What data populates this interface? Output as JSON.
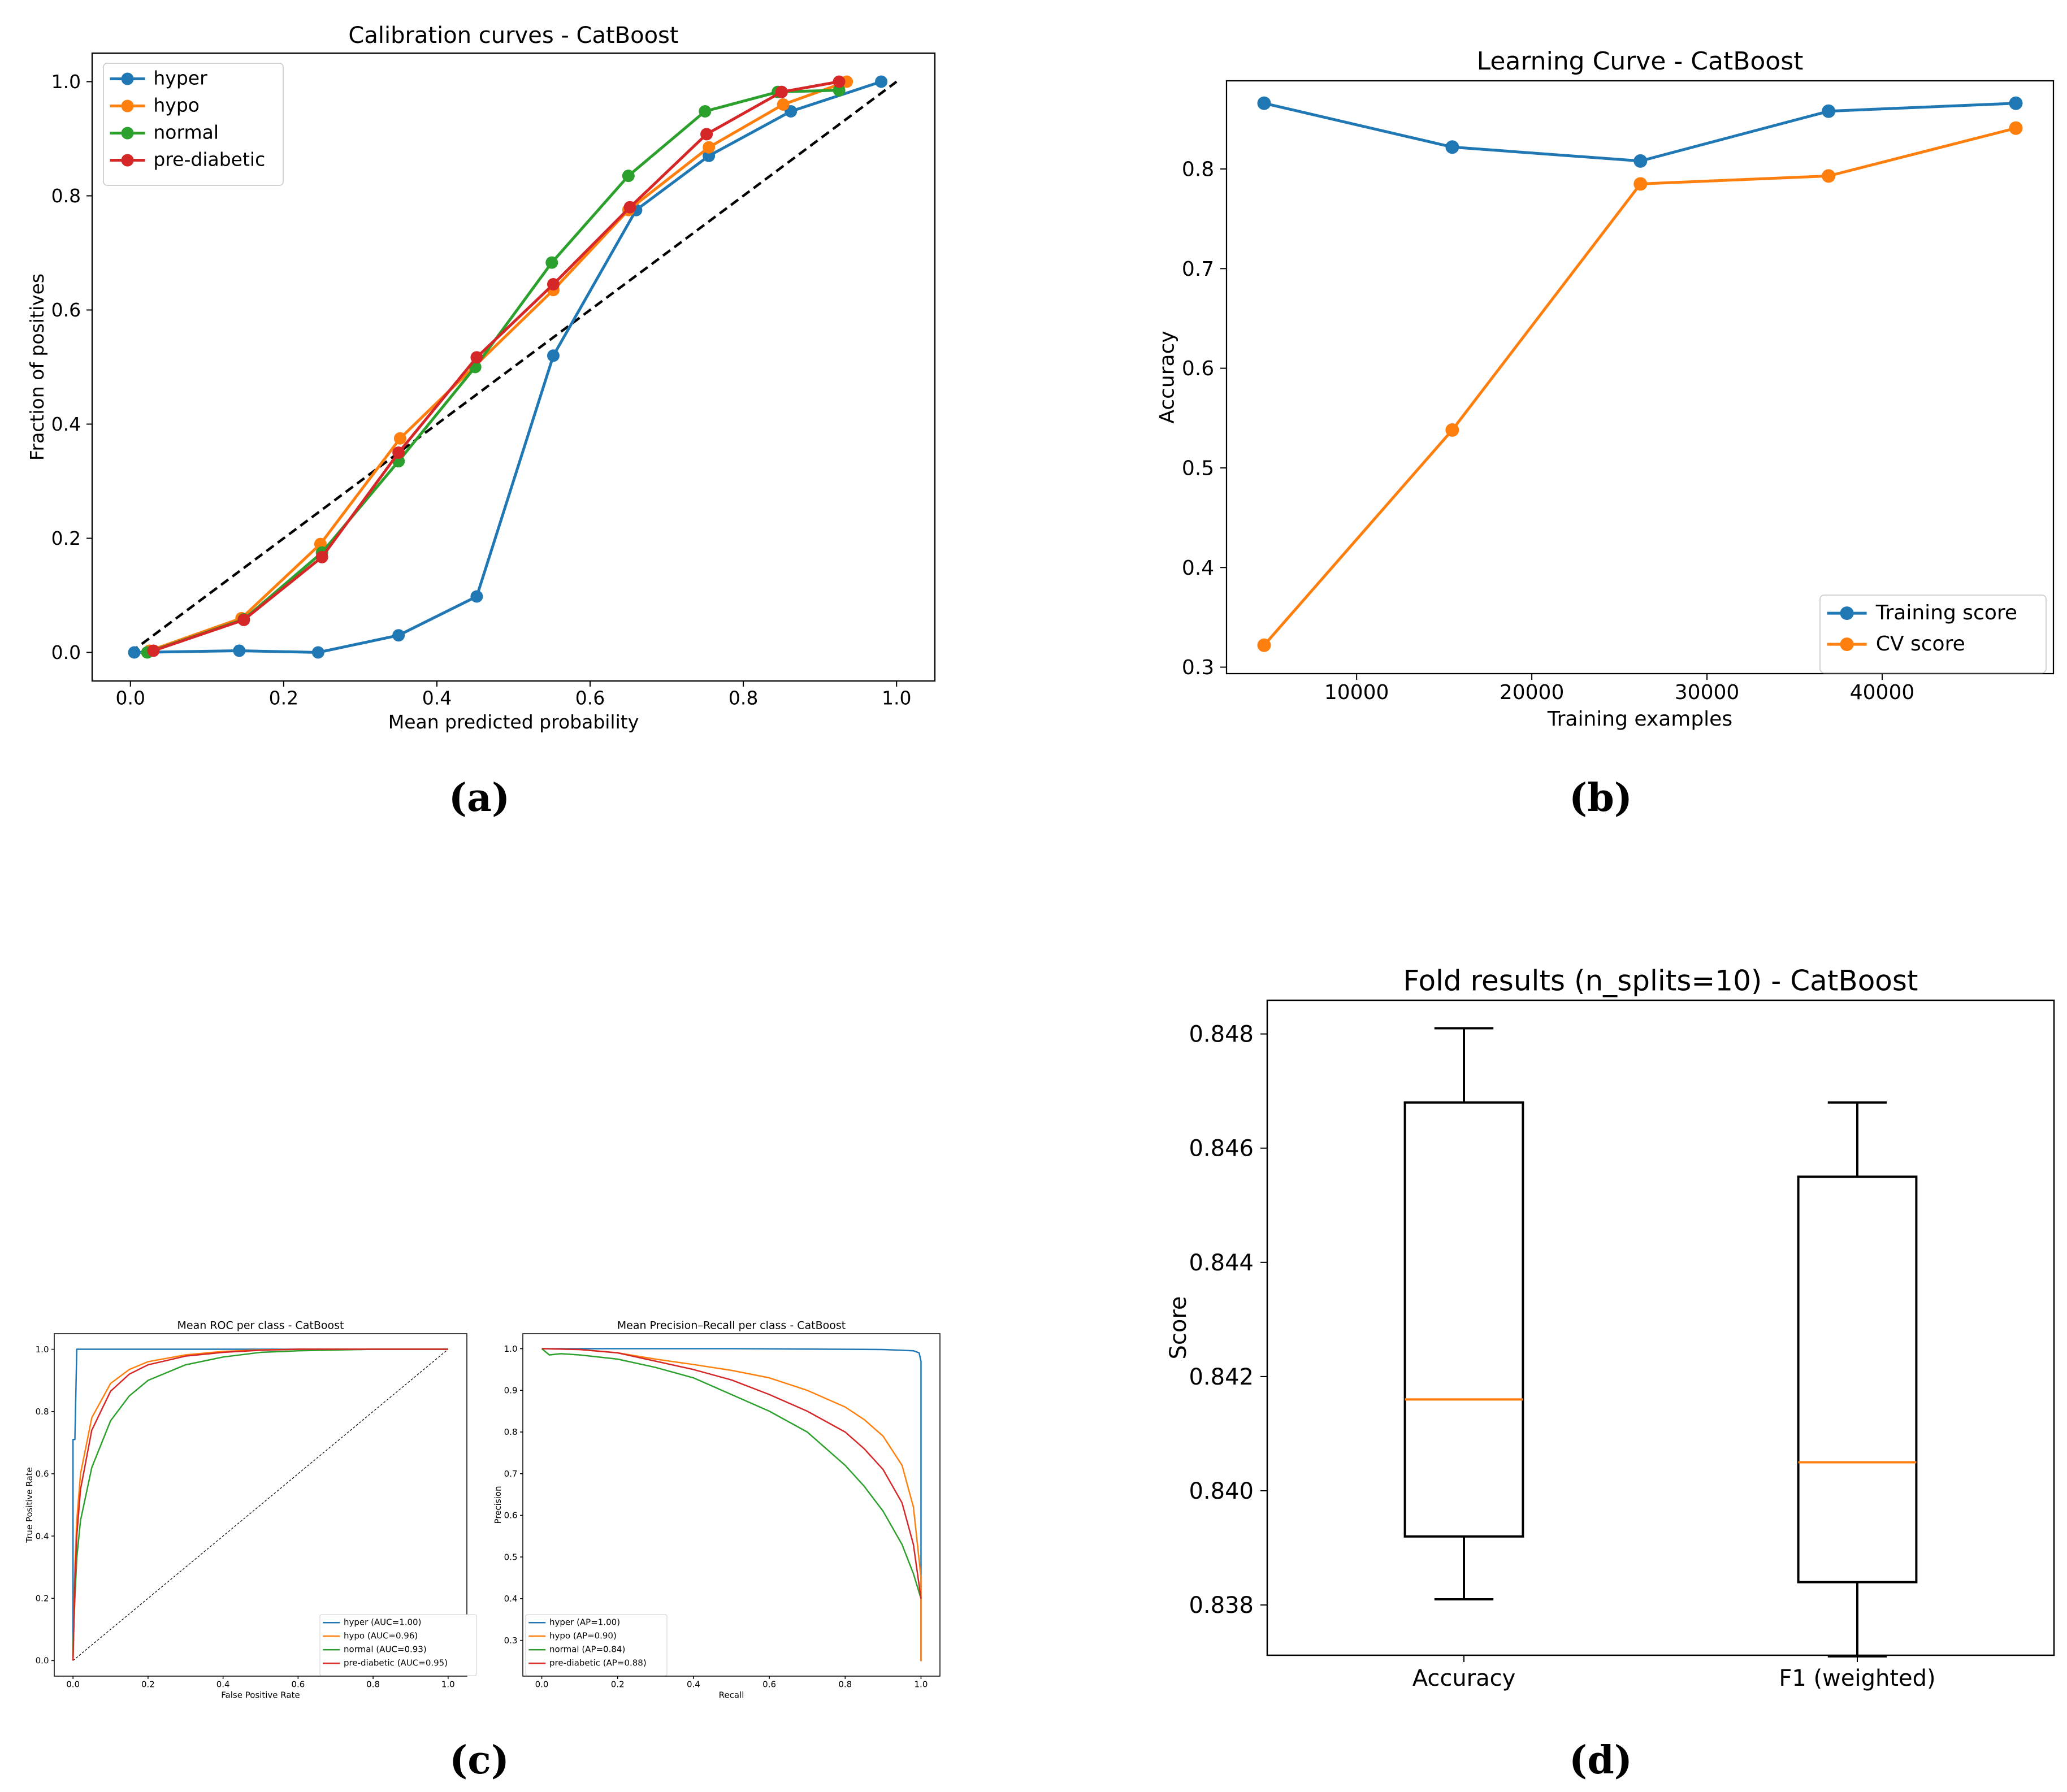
{
  "colors": {
    "blue": "#1f77b4",
    "orange": "#ff7f0e",
    "green": "#2ca02c",
    "red": "#d62728",
    "black": "#000000"
  },
  "panels": {
    "a": "(a)",
    "b": "(b)",
    "c": "(c)",
    "d": "(d)"
  },
  "chart_data": [
    {
      "id": "a",
      "type": "line",
      "title": "Calibration curves - CatBoost",
      "xlabel": "Mean predicted probability",
      "ylabel": "Fraction of positives",
      "xlim": [
        -0.05,
        1.05
      ],
      "ylim": [
        -0.05,
        1.05
      ],
      "xticks": [
        0.0,
        0.2,
        0.4,
        0.6,
        0.8,
        1.0
      ],
      "xtick_labels": [
        "0.0",
        "0.2",
        "0.4",
        "0.6",
        "0.8",
        "1.0"
      ],
      "yticks": [
        0.0,
        0.2,
        0.4,
        0.6,
        0.8,
        1.0
      ],
      "ytick_labels": [
        "0.0",
        "0.2",
        "0.4",
        "0.6",
        "0.8",
        "1.0"
      ],
      "legend": "top-left",
      "reference_line": {
        "x": [
          0,
          1
        ],
        "y": [
          0,
          1
        ],
        "style": "dashed",
        "color": "#000000"
      },
      "series": [
        {
          "name": "hyper",
          "color": "#1f77b4",
          "x": [
            0.005,
            0.142,
            0.245,
            0.35,
            0.452,
            0.552,
            0.66,
            0.755,
            0.862,
            0.98
          ],
          "y": [
            0.0,
            0.003,
            0.0,
            0.03,
            0.098,
            0.52,
            0.775,
            0.87,
            0.948,
            1.0
          ]
        },
        {
          "name": "hypo",
          "color": "#ff7f0e",
          "x": [
            0.025,
            0.145,
            0.248,
            0.352,
            0.552,
            0.65,
            0.755,
            0.852,
            0.935
          ],
          "y": [
            0.003,
            0.06,
            0.19,
            0.375,
            0.635,
            0.775,
            0.885,
            0.96,
            1.0
          ]
        },
        {
          "name": "normal",
          "color": "#2ca02c",
          "x": [
            0.022,
            0.148,
            0.25,
            0.35,
            0.45,
            0.55,
            0.65,
            0.75,
            0.845,
            0.925
          ],
          "y": [
            0.0,
            0.058,
            0.175,
            0.335,
            0.5,
            0.683,
            0.835,
            0.948,
            0.982,
            0.985
          ]
        },
        {
          "name": "pre-diabetic",
          "color": "#d62728",
          "x": [
            0.03,
            0.148,
            0.25,
            0.35,
            0.452,
            0.552,
            0.652,
            0.752,
            0.85,
            0.925
          ],
          "y": [
            0.003,
            0.057,
            0.167,
            0.35,
            0.517,
            0.645,
            0.78,
            0.908,
            0.982,
            1.0
          ]
        }
      ]
    },
    {
      "id": "b",
      "type": "line",
      "title": "Learning Curve - CatBoost",
      "xlabel": "Training examples",
      "ylabel": "Accuracy",
      "xlim": [
        2575,
        49775
      ],
      "ylim": [
        0.2935,
        0.8885
      ],
      "xticks": [
        10000,
        20000,
        30000,
        40000
      ],
      "xtick_labels": [
        "10000",
        "20000",
        "30000",
        "40000"
      ],
      "yticks": [
        0.3,
        0.4,
        0.5,
        0.6,
        0.7,
        0.8
      ],
      "ytick_labels": [
        "0.3",
        "0.4",
        "0.5",
        "0.6",
        "0.7",
        "0.8"
      ],
      "legend": "lower-right",
      "series": [
        {
          "name": "Training score",
          "color": "#1f77b4",
          "x": [
            4720,
            15460,
            26200,
            36940,
            47630
          ],
          "y": [
            0.866,
            0.822,
            0.808,
            0.858,
            0.866
          ]
        },
        {
          "name": "CV score",
          "color": "#ff7f0e",
          "x": [
            4720,
            15460,
            26200,
            36940,
            47630
          ],
          "y": [
            0.322,
            0.538,
            0.785,
            0.793,
            0.841
          ]
        }
      ]
    },
    {
      "id": "c1",
      "type": "line",
      "title": "Mean ROC per class - CatBoost",
      "xlabel": "False Positive Rate",
      "ylabel": "True Positive Rate",
      "xlim": [
        -0.05,
        1.05
      ],
      "ylim": [
        -0.05,
        1.05
      ],
      "xticks": [
        0.0,
        0.2,
        0.4,
        0.6,
        0.8,
        1.0
      ],
      "xtick_labels": [
        "0.0",
        "0.2",
        "0.4",
        "0.6",
        "0.8",
        "1.0"
      ],
      "yticks": [
        0.0,
        0.2,
        0.4,
        0.6,
        0.8,
        1.0
      ],
      "ytick_labels": [
        "0.0",
        "0.2",
        "0.4",
        "0.6",
        "0.8",
        "1.0"
      ],
      "legend": "lower-right",
      "reference_line": {
        "x": [
          0,
          1
        ],
        "y": [
          0,
          1
        ],
        "style": "dashed",
        "color": "#000000"
      },
      "series": [
        {
          "name": "hyper (AUC=1.00)",
          "color": "#1f77b4",
          "x": [
            0.0,
            0.0,
            0.005,
            0.01,
            0.05,
            1.0
          ],
          "y": [
            0.0,
            0.71,
            0.71,
            1.0,
            1.0,
            1.0
          ]
        },
        {
          "name": "hypo (AUC=0.96)",
          "color": "#ff7f0e",
          "x": [
            0.0,
            0.005,
            0.01,
            0.02,
            0.05,
            0.1,
            0.15,
            0.2,
            0.3,
            0.4,
            0.5,
            0.6,
            1.0
          ],
          "y": [
            0.0,
            0.3,
            0.45,
            0.6,
            0.78,
            0.89,
            0.935,
            0.96,
            0.982,
            0.993,
            0.998,
            1.0,
            1.0
          ]
        },
        {
          "name": "normal (AUC=0.93)",
          "color": "#2ca02c",
          "x": [
            0.0,
            0.0,
            0.005,
            0.01,
            0.02,
            0.05,
            0.1,
            0.15,
            0.2,
            0.3,
            0.4,
            0.5,
            0.6,
            0.8,
            1.0
          ],
          "y": [
            0.0,
            0.05,
            0.2,
            0.33,
            0.45,
            0.62,
            0.77,
            0.85,
            0.9,
            0.95,
            0.975,
            0.99,
            0.995,
            1.0,
            1.0
          ]
        },
        {
          "name": "pre-diabetic (AUC=0.95)",
          "color": "#d62728",
          "x": [
            0.0,
            0.005,
            0.01,
            0.02,
            0.05,
            0.1,
            0.15,
            0.2,
            0.3,
            0.4,
            0.5,
            0.6,
            1.0
          ],
          "y": [
            0.0,
            0.25,
            0.4,
            0.55,
            0.74,
            0.865,
            0.92,
            0.95,
            0.978,
            0.99,
            0.997,
            1.0,
            1.0
          ]
        }
      ]
    },
    {
      "id": "c2",
      "type": "line",
      "title": "Mean Precision–Recall per class - CatBoost",
      "xlabel": "Recall",
      "ylabel": "Precision",
      "xlim": [
        -0.05,
        1.05
      ],
      "ylim": [
        0.214,
        1.036
      ],
      "xticks": [
        0.0,
        0.2,
        0.4,
        0.6,
        0.8,
        1.0
      ],
      "xtick_labels": [
        "0.0",
        "0.2",
        "0.4",
        "0.6",
        "0.8",
        "1.0"
      ],
      "yticks": [
        0.3,
        0.4,
        0.5,
        0.6,
        0.7,
        0.8,
        0.9,
        1.0
      ],
      "ytick_labels": [
        "0.3",
        "0.4",
        "0.5",
        "0.6",
        "0.7",
        "0.8",
        "0.9",
        "1.0"
      ],
      "legend": "lower-left",
      "series": [
        {
          "name": "hyper (AP=1.00)",
          "color": "#1f77b4",
          "x": [
            0.0,
            0.5,
            0.9,
            0.98,
            0.995,
            1.0,
            1.0
          ],
          "y": [
            1.0,
            1.0,
            0.998,
            0.995,
            0.99,
            0.97,
            0.25
          ]
        },
        {
          "name": "hypo (AP=0.90)",
          "color": "#ff7f0e",
          "x": [
            0.0,
            0.1,
            0.2,
            0.3,
            0.4,
            0.5,
            0.6,
            0.7,
            0.8,
            0.85,
            0.9,
            0.95,
            0.98,
            1.0,
            1.0
          ],
          "y": [
            1.0,
            0.998,
            0.99,
            0.975,
            0.962,
            0.948,
            0.93,
            0.9,
            0.86,
            0.83,
            0.79,
            0.72,
            0.62,
            0.45,
            0.25
          ]
        },
        {
          "name": "normal (AP=0.84)",
          "color": "#2ca02c",
          "x": [
            0.0,
            0.02,
            0.05,
            0.1,
            0.2,
            0.3,
            0.4,
            0.5,
            0.6,
            0.7,
            0.8,
            0.85,
            0.9,
            0.95,
            0.98,
            1.0
          ],
          "y": [
            1.0,
            0.985,
            0.988,
            0.985,
            0.975,
            0.955,
            0.93,
            0.89,
            0.85,
            0.8,
            0.72,
            0.67,
            0.61,
            0.53,
            0.46,
            0.4
          ]
        },
        {
          "name": "pre-diabetic (AP=0.88)",
          "color": "#d62728",
          "x": [
            0.0,
            0.1,
            0.2,
            0.3,
            0.4,
            0.5,
            0.6,
            0.7,
            0.8,
            0.85,
            0.9,
            0.95,
            0.98,
            1.0
          ],
          "y": [
            1.0,
            0.998,
            0.99,
            0.97,
            0.95,
            0.925,
            0.89,
            0.85,
            0.8,
            0.76,
            0.71,
            0.63,
            0.53,
            0.4
          ]
        }
      ]
    },
    {
      "id": "d",
      "type": "box",
      "title": "Fold results (n_splits=10) - CatBoost",
      "xlabel": "",
      "ylabel": "Score",
      "ylim": [
        0.83712,
        0.84859
      ],
      "yticks": [
        0.838,
        0.84,
        0.842,
        0.844,
        0.846,
        0.848
      ],
      "ytick_labels": [
        "0.838",
        "0.840",
        "0.842",
        "0.844",
        "0.846",
        "0.848"
      ],
      "categories": [
        "Accuracy",
        "F1 (weighted)"
      ],
      "boxes": [
        {
          "name": "Accuracy",
          "whisker_low": 0.8381,
          "q1": 0.8392,
          "median": 0.8416,
          "q3": 0.8468,
          "whisker_high": 0.8481
        },
        {
          "name": "F1 (weighted)",
          "whisker_low": 0.8371,
          "q1": 0.8384,
          "median": 0.8405,
          "q3": 0.8455,
          "whisker_high": 0.8468
        }
      ],
      "median_color": "#ff7f0e"
    }
  ]
}
